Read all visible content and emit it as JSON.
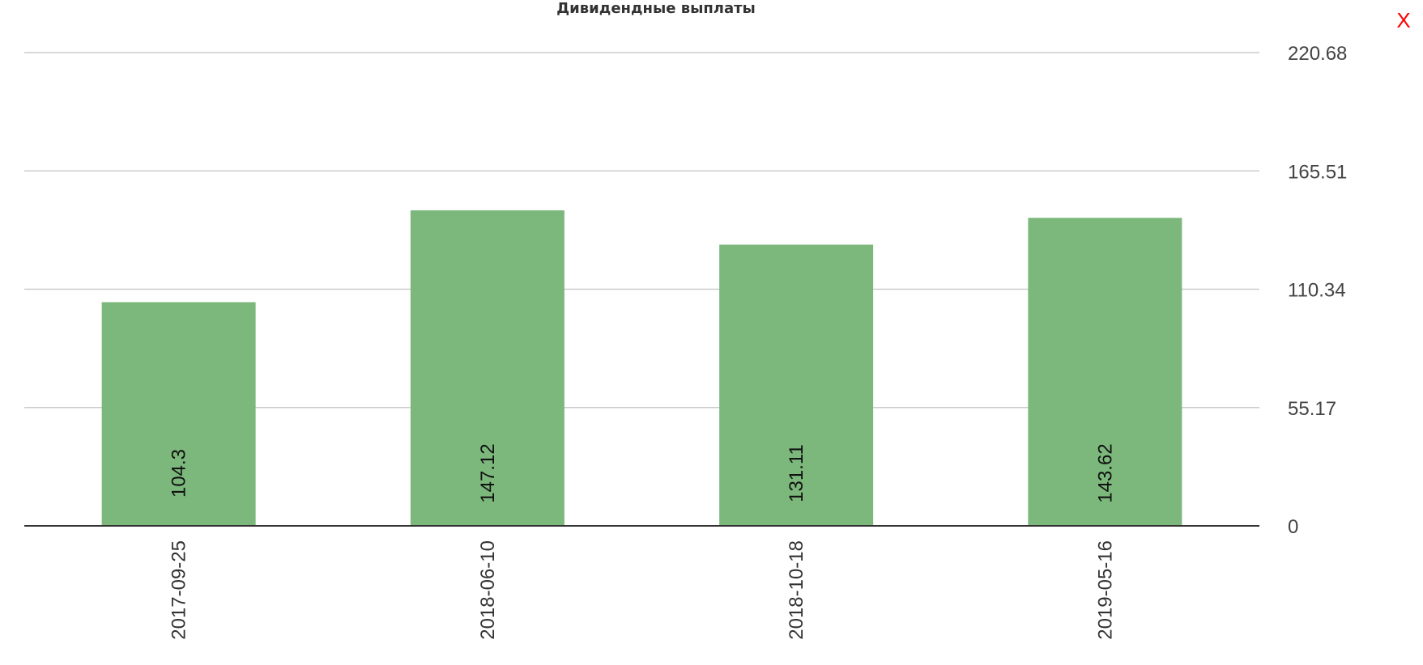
{
  "close": {
    "label": "X"
  },
  "colors": {
    "bar": "#7cb87c",
    "grid": "#cccccc",
    "baseline": "#333333",
    "close": "#ff0000"
  },
  "chart_data": {
    "type": "bar",
    "title": "Дивидендные выплаты",
    "xlabel": "",
    "ylabel": "",
    "categories": [
      "2017-09-25",
      "2018-06-10",
      "2018-10-18",
      "2019-05-16"
    ],
    "values": [
      104.3,
      147.12,
      131.11,
      143.62
    ],
    "value_labels": [
      "104.3",
      "147.12",
      "131.11",
      "143.62"
    ],
    "ylim": [
      0,
      220.68
    ],
    "yticks": [
      "0",
      "55.17",
      "110.34",
      "165.51",
      "220.68"
    ],
    "y_axis_position": "right",
    "grid": true,
    "legend": false
  }
}
